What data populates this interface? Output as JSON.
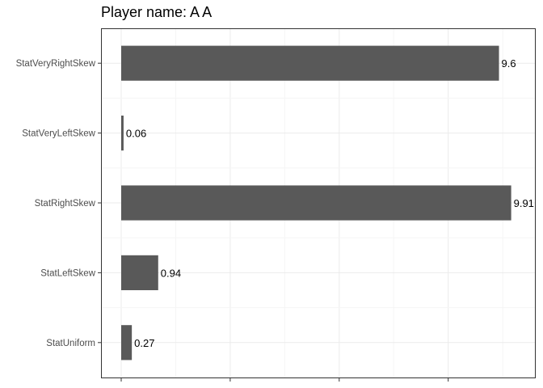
{
  "chart_data": {
    "type": "bar",
    "orientation": "horizontal",
    "title": "Player name: A A",
    "xlabel": "",
    "ylabel": "",
    "categories": [
      "StatVeryRightSkew",
      "StatVeryLeftSkew",
      "StatRightSkew",
      "StatLeftSkew",
      "StatUniform"
    ],
    "values": [
      9.6,
      0.06,
      9.91,
      0.94,
      0.27
    ],
    "data_labels": [
      "9.6",
      "0.06",
      "9.91",
      "0.94",
      "0.27"
    ],
    "ylim": [
      0,
      10.9
    ],
    "grid": true,
    "legend": "none",
    "colors": {
      "bar": "#595959",
      "grid_major": "#ebebeb",
      "grid_minor": "#f5f5f5",
      "panel_border": "#333333"
    }
  }
}
